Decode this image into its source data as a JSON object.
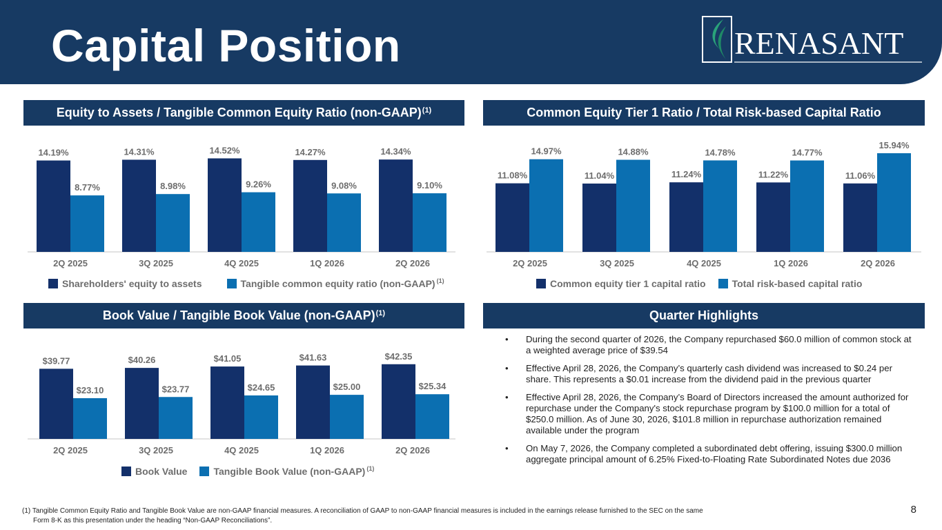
{
  "title": "Capital Position",
  "logo": {
    "text": "RENASANT"
  },
  "colors": {
    "navy": "#173a63",
    "dark_bar": "#13306a",
    "light_bar": "#0b6fb1"
  },
  "panels": {
    "equity": {
      "title": "Equity to Assets / Tangible Common Equity Ratio (non-GAAP)",
      "sup": "(1)"
    },
    "cet1": {
      "title": "Common Equity Tier 1 Ratio / Total Risk-based Capital Ratio"
    },
    "book": {
      "title": "Book Value / Tangible Book Value (non-GAAP)",
      "sup": "(1)"
    },
    "highlights": {
      "title": "Quarter Highlights"
    }
  },
  "legends": {
    "equity": {
      "a": "Shareholders' equity to assets",
      "b": "Tangible common equity ratio (non-GAAP)",
      "b_sup": "(1)"
    },
    "cet1": {
      "a": "Common equity tier 1 capital ratio",
      "b": "Total risk-based capital ratio"
    },
    "book": {
      "a": "Book Value",
      "b": "Tangible Book Value (non-GAAP)",
      "b_sup": "(1)"
    }
  },
  "chart_data": [
    {
      "type": "bar",
      "title": "Equity to Assets / Tangible Common Equity Ratio (non-GAAP)",
      "categories": [
        "2Q 2025",
        "3Q 2025",
        "4Q 2025",
        "1Q 2026",
        "2Q 2026"
      ],
      "series": [
        {
          "name": "Shareholders' equity to assets",
          "values": [
            14.19,
            14.31,
            14.52,
            14.27,
            14.34
          ],
          "labels": [
            "14.19%",
            "14.31%",
            "14.52%",
            "14.27%",
            "14.34%"
          ]
        },
        {
          "name": "Tangible common equity ratio (non-GAAP)",
          "values": [
            8.77,
            8.98,
            9.26,
            9.08,
            9.1
          ],
          "labels": [
            "8.77%",
            "8.98%",
            "9.26%",
            "9.08%",
            "9.10%"
          ]
        }
      ],
      "ylim": [
        0,
        15
      ],
      "legend": "bottom"
    },
    {
      "type": "bar",
      "title": "Common Equity Tier 1 Ratio / Total Risk-based Capital Ratio",
      "categories": [
        "2Q 2025",
        "3Q 2025",
        "4Q 2025",
        "1Q 2026",
        "2Q 2026"
      ],
      "series": [
        {
          "name": "Common equity tier 1 capital ratio",
          "values": [
            11.08,
            11.04,
            11.24,
            11.22,
            11.06
          ],
          "labels": [
            "11.08%",
            "11.04%",
            "11.24%",
            "11.22%",
            "11.06%"
          ]
        },
        {
          "name": "Total risk-based capital ratio",
          "values": [
            14.97,
            14.88,
            14.78,
            14.77,
            15.94
          ],
          "labels": [
            "14.97%",
            "14.88%",
            "14.78%",
            "14.77%",
            "15.94%"
          ]
        }
      ],
      "ylim": [
        0,
        16.5
      ],
      "legend": "bottom"
    },
    {
      "type": "bar",
      "title": "Book Value / Tangible Book Value (non-GAAP)",
      "categories": [
        "2Q 2025",
        "3Q 2025",
        "4Q 2025",
        "1Q 2026",
        "2Q 2026"
      ],
      "series": [
        {
          "name": "Book Value",
          "values": [
            39.77,
            40.26,
            41.05,
            41.63,
            42.35
          ],
          "labels": [
            "$39.77",
            "$40.26",
            "$41.05",
            "$41.63",
            "$42.35"
          ]
        },
        {
          "name": "Tangible Book Value (non-GAAP)",
          "values": [
            23.1,
            23.77,
            24.65,
            25.0,
            25.34
          ],
          "labels": [
            "$23.10",
            "$23.77",
            "$24.65",
            "$25.00",
            "$25.34"
          ]
        }
      ],
      "ylim": [
        0,
        45
      ],
      "legend": "bottom"
    }
  ],
  "highlights": [
    "During the second quarter of 2026, the Company repurchased $60.0 million of common stock at a weighted average price of $39.54",
    "Effective April 28, 2026, the Company’s quarterly cash dividend was increased to $0.24 per share. This represents a $0.01 increase from the dividend paid in the previous quarter",
    "Effective April 28, 2026, the Company’s Board of Directors increased the amount authorized for repurchase under the Company's stock repurchase program by $100.0 million for a total of $250.0 million. As of June 30, 2026, $101.8 million in repurchase authorization remained available under the program",
    "On May 7, 2026, the Company completed a subordinated debt offering, issuing $300.0 million aggregate principal amount of 6.25% Fixed-to-Floating Rate Subordinated Notes due 2036"
  ],
  "bullet_char": "•",
  "footnote": {
    "line1": "(1) Tangible Common Equity Ratio and Tangible Book Value are non-GAAP financial measures. A reconciliation of GAAP to non-GAAP financial measures is included in the earnings release furnished to the SEC on the same",
    "line2": "Form 8-K as this presentation under the heading “Non-GAAP Reconciliations”."
  },
  "page_number": "8"
}
